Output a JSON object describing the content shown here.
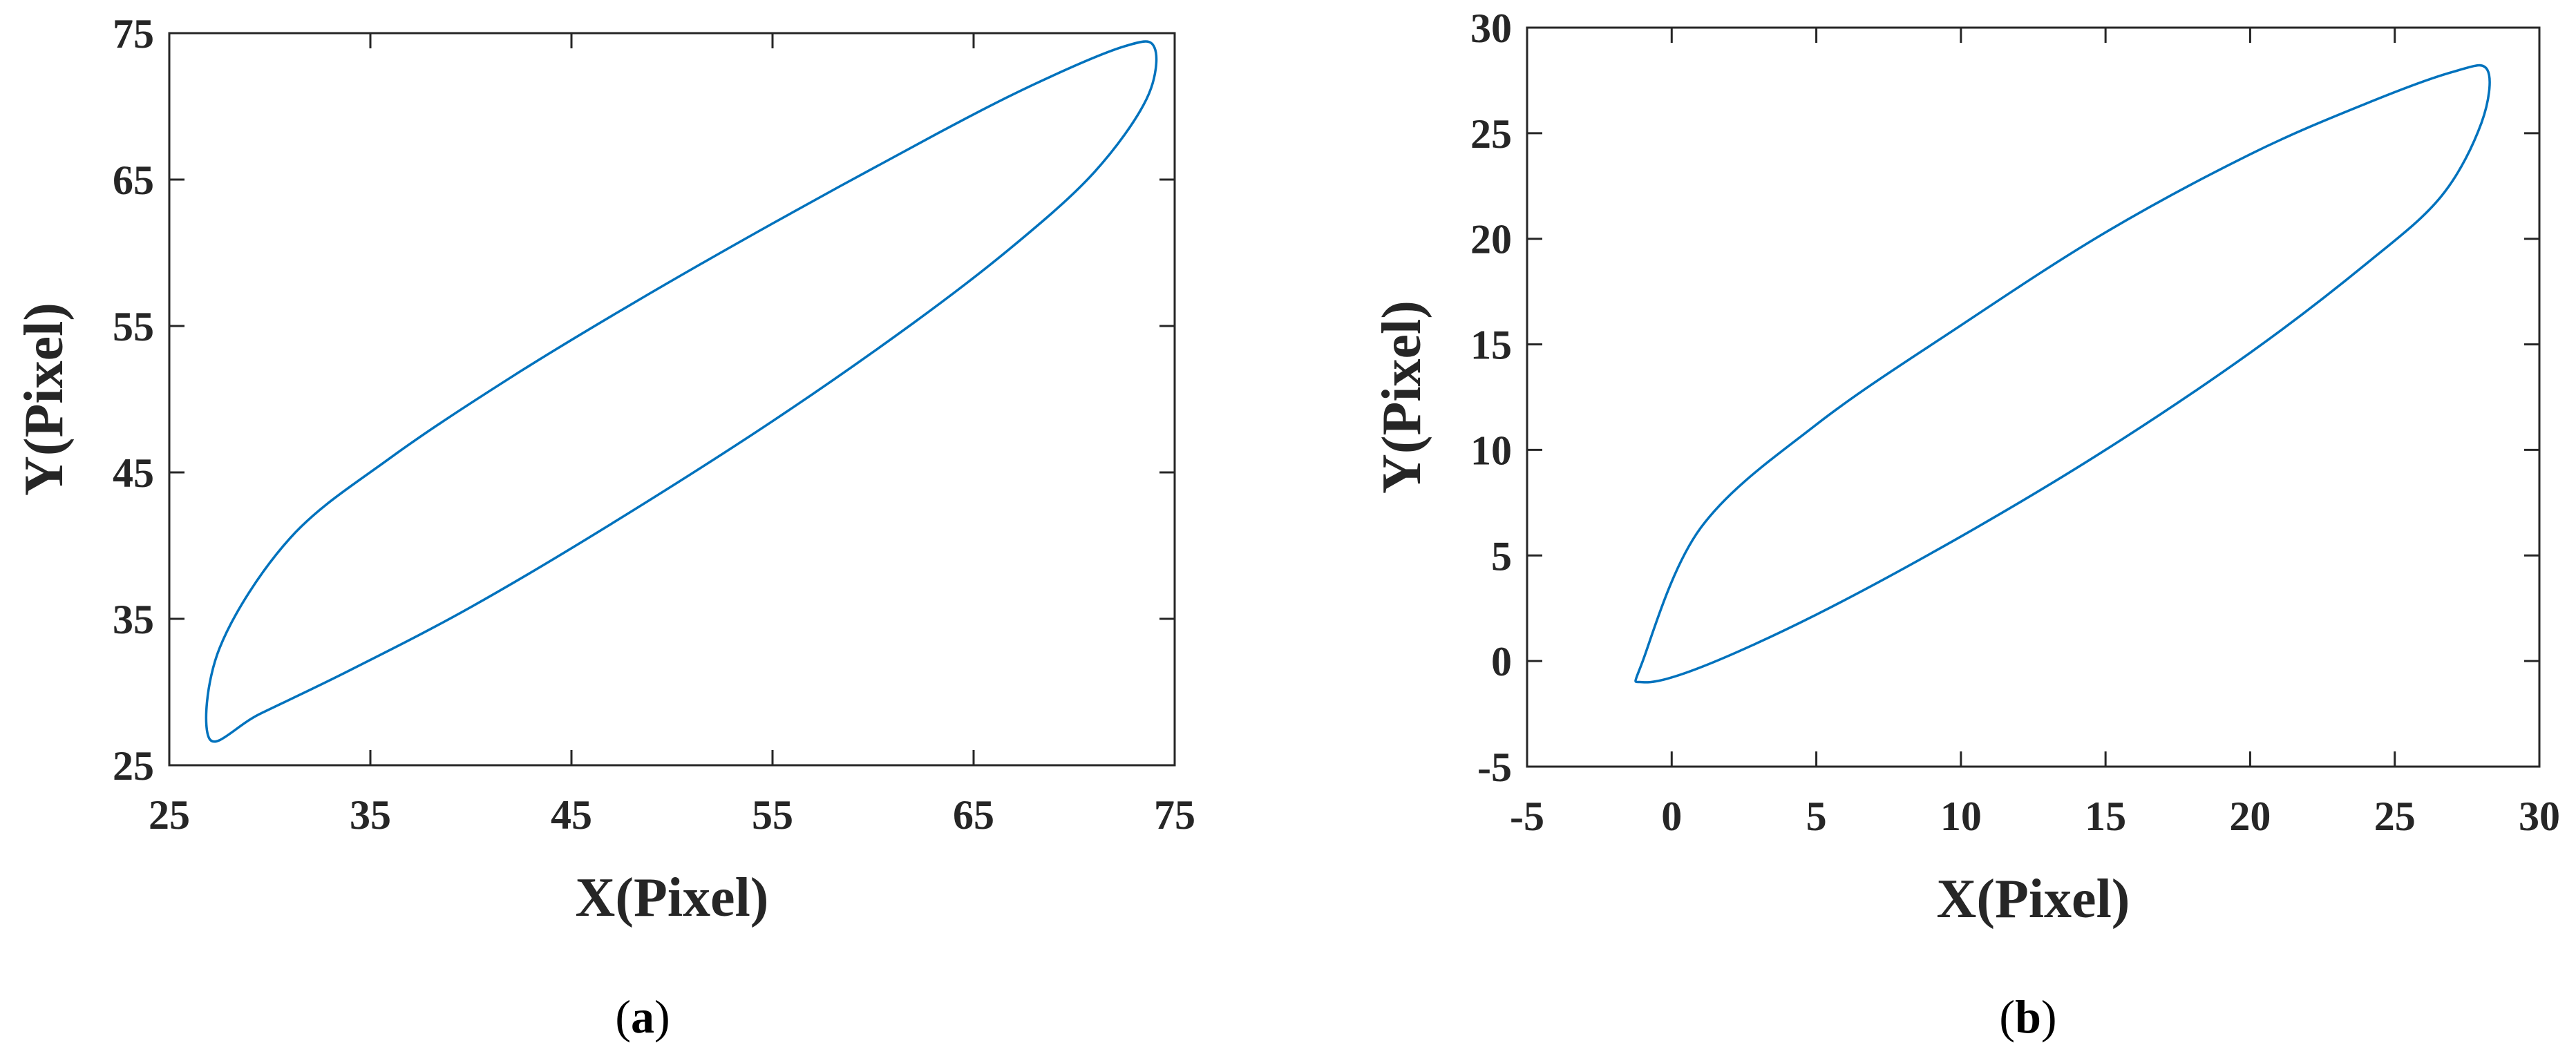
{
  "chart_data": [
    {
      "type": "line",
      "panel_label": "a",
      "xlabel": "X(Pixel)",
      "ylabel": "Y(Pixel)",
      "xlim": [
        25,
        75
      ],
      "ylim": [
        25,
        75
      ],
      "xticks": [
        25,
        35,
        45,
        55,
        65,
        75
      ],
      "yticks": [
        25,
        35,
        45,
        55,
        65,
        75
      ],
      "xtick_labels": [
        "25",
        "35",
        "45",
        "55",
        "65",
        "75"
      ],
      "ytick_labels": [
        "25",
        "35",
        "45",
        "55",
        "65",
        "75"
      ],
      "grid": false,
      "color": "#0072BD",
      "series": [
        {
          "shape": "closed ellipse",
          "x": [
            27.0,
            29.5,
            34.0,
            40.0,
            47.0,
            55.0,
            62.0,
            67.0,
            71.0,
            73.6,
            74.0,
            72.5,
            68.0,
            63.0,
            55.0,
            48.0,
            42.0,
            36.0,
            31.0,
            27.5,
            27.0
          ],
          "y": [
            26.8,
            28.5,
            31.5,
            35.8,
            41.5,
            48.5,
            55.2,
            60.5,
            65.5,
            70.5,
            74.0,
            74.1,
            71.5,
            68.0,
            62.0,
            56.5,
            51.5,
            46.0,
            40.5,
            33.0,
            26.8
          ]
        }
      ]
    },
    {
      "type": "line",
      "panel_label": "b",
      "xlabel": "X(Pixel)",
      "ylabel": "Y(Pixel)",
      "xlim": [
        -5,
        30
      ],
      "ylim": [
        -5,
        30
      ],
      "xticks": [
        -5,
        0,
        5,
        10,
        15,
        20,
        25,
        30
      ],
      "yticks": [
        -5,
        0,
        5,
        10,
        15,
        20,
        25,
        30
      ],
      "xtick_labels": [
        "-5",
        "0",
        "5",
        "10",
        "15",
        "20",
        "25",
        "30"
      ],
      "ytick_labels": [
        "-5",
        "0",
        "5",
        "10",
        "15",
        "20",
        "25",
        "30"
      ],
      "grid": false,
      "color": "#0072BD",
      "series": [
        {
          "shape": "closed ellipse",
          "x": [
            -1.0,
            1.0,
            5.0,
            10.0,
            15.0,
            20.0,
            24.0,
            26.6,
            28.0,
            28.2,
            27.0,
            24.0,
            20.0,
            15.0,
            10.0,
            5.0,
            1.0,
            -1.0,
            -1.0
          ],
          "y": [
            -1.0,
            -0.3,
            2.2,
            5.9,
            10.0,
            14.6,
            18.8,
            22.0,
            25.5,
            28.0,
            27.9,
            26.4,
            24.0,
            20.3,
            15.9,
            11.2,
            6.3,
            0.0,
            -1.0
          ]
        }
      ]
    }
  ]
}
